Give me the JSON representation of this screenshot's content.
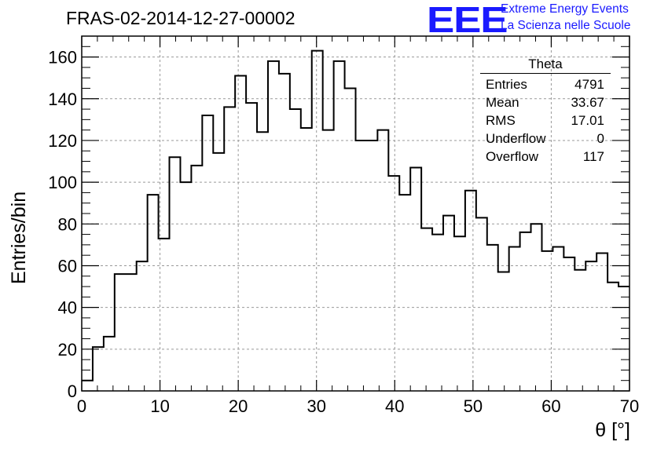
{
  "title": "FRAS-02-2014-12-27-00002",
  "logo": {
    "text": "EEE",
    "line1": "Extreme Energy Events",
    "line2": "La Scienza nelle Scuole",
    "color": "#1a1aff"
  },
  "stats": {
    "title": "Theta",
    "rows": [
      {
        "label": "Entries",
        "value": "4791"
      },
      {
        "label": "Mean",
        "value": "33.67"
      },
      {
        "label": "RMS",
        "value": "17.01"
      },
      {
        "label": "Underflow",
        "value": "0"
      },
      {
        "label": "Overflow",
        "value": "117"
      }
    ]
  },
  "chart_data": {
    "type": "histogram",
    "xlabel": "θ [°]",
    "ylabel": "Entries/bin",
    "xlim": [
      0,
      70
    ],
    "ylim": [
      0,
      170
    ],
    "grid": true,
    "bin_width": 1.4,
    "bin_start": 0,
    "values": [
      5,
      21,
      26,
      56,
      56,
      62,
      94,
      73,
      112,
      100,
      108,
      132,
      114,
      136,
      151,
      138,
      124,
      158,
      152,
      135,
      126,
      163,
      125,
      158,
      145,
      120,
      120,
      125,
      103,
      94,
      107,
      78,
      75,
      84,
      74,
      96,
      83,
      70,
      57,
      69,
      76,
      80,
      67,
      69,
      64,
      58,
      62,
      66,
      52,
      50
    ],
    "xticks": [
      0,
      10,
      20,
      30,
      40,
      50,
      60,
      70
    ],
    "yticks": [
      0,
      20,
      40,
      60,
      80,
      100,
      120,
      140,
      160
    ]
  }
}
